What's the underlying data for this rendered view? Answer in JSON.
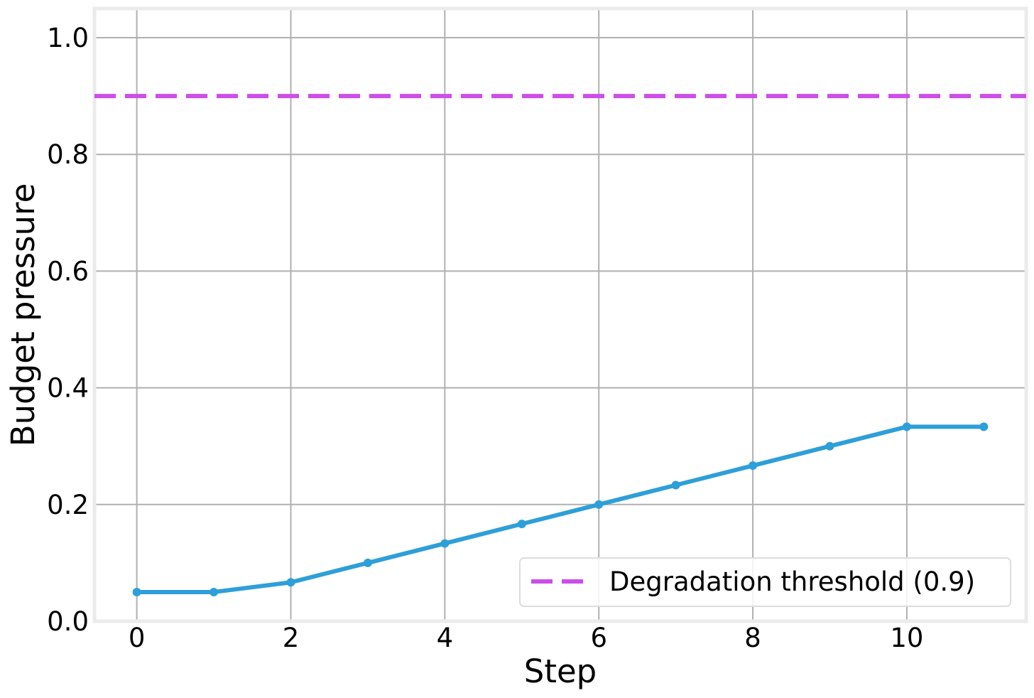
{
  "chart_data": {
    "type": "line",
    "x_label": "Step",
    "y_label": "Budget pressure",
    "x": [
      0,
      1,
      2,
      3,
      4,
      5,
      6,
      7,
      8,
      9,
      10,
      11
    ],
    "series": [
      {
        "color": "#2e9fd8",
        "values": [
          0.05,
          0.05,
          0.0667,
          0.1,
          0.1333,
          0.1667,
          0.2,
          0.2333,
          0.2667,
          0.3,
          0.3333,
          0.3333
        ]
      }
    ],
    "threshold": {
      "value": 0.9,
      "label": "Degradation threshold (0.9)",
      "color": "#cc4ee8"
    },
    "xlim": [
      -0.55,
      11.55
    ],
    "ylim": [
      0,
      1.05
    ],
    "xticks": [
      0,
      2,
      4,
      6,
      8,
      10
    ],
    "yticks": [
      {
        "value": 0,
        "label": "0.0"
      },
      0.2,
      0.4,
      0.6,
      0.8,
      {
        "value": 1,
        "label": "1.0"
      }
    ],
    "grid": true,
    "legend_position": "lower right"
  }
}
